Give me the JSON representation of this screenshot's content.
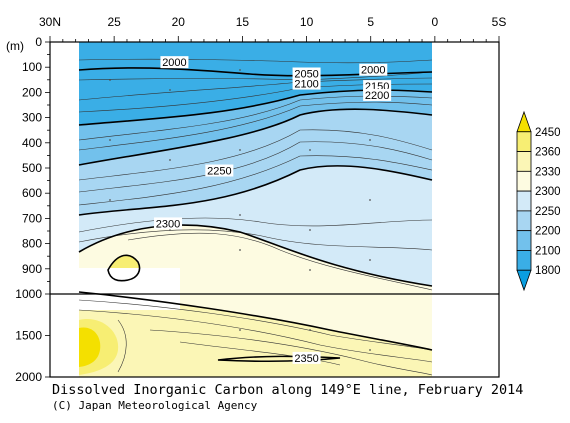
{
  "chart_data": {
    "type": "contour",
    "title": "Dissolved Inorganic Carbon along 149°E line, February 2014",
    "credit": "(C) Japan Meteorological Agency",
    "x_axis": {
      "ticks": [
        {
          "value": 30,
          "label": "30N"
        },
        {
          "value": 25,
          "label": "25"
        },
        {
          "value": 20,
          "label": "20"
        },
        {
          "value": 15,
          "label": "15"
        },
        {
          "value": 10,
          "label": "10"
        },
        {
          "value": 5,
          "label": "5"
        },
        {
          "value": 0,
          "label": "0"
        },
        {
          "value": -5,
          "label": "5S"
        }
      ],
      "range": [
        30,
        -5
      ]
    },
    "y_axis": {
      "unit_label": "(m)",
      "upper_ticks": [
        "0",
        "100",
        "200",
        "300",
        "400",
        "500",
        "600",
        "700",
        "800",
        "900",
        "1000"
      ],
      "lower_ticks": [
        "1500",
        "2000"
      ],
      "range": [
        0,
        2000
      ],
      "scale_break_at": 1000
    },
    "contour_labels": [
      {
        "text": "2000",
        "lat": 20.3,
        "depth": 80
      },
      {
        "text": "2000",
        "lat": 4.8,
        "depth": 110
      },
      {
        "text": "2050",
        "lat": 10.0,
        "depth": 125
      },
      {
        "text": "2100",
        "lat": 10.0,
        "depth": 165
      },
      {
        "text": "2150",
        "lat": 4.5,
        "depth": 175
      },
      {
        "text": "2200",
        "lat": 4.5,
        "depth": 210
      },
      {
        "text": "2250",
        "lat": 16.8,
        "depth": 510
      },
      {
        "text": "2300",
        "lat": 20.8,
        "depth": 720
      },
      {
        "text": "2350",
        "lat": 10.0,
        "depth": 1770
      }
    ],
    "colorbar": {
      "labels": [
        "2450",
        "2360",
        "2330",
        "2300",
        "2250",
        "2200",
        "2100",
        "1800"
      ],
      "colors": [
        "#f4e000",
        "#f7ee73",
        "#fbf6b6",
        "#fdfbe1",
        "#d3eaf8",
        "#a8d6f2",
        "#72c1ec",
        "#3aaee6",
        "#0a9ee0"
      ]
    },
    "data_region": {
      "lat_north": 28,
      "lat_south": 0
    }
  }
}
